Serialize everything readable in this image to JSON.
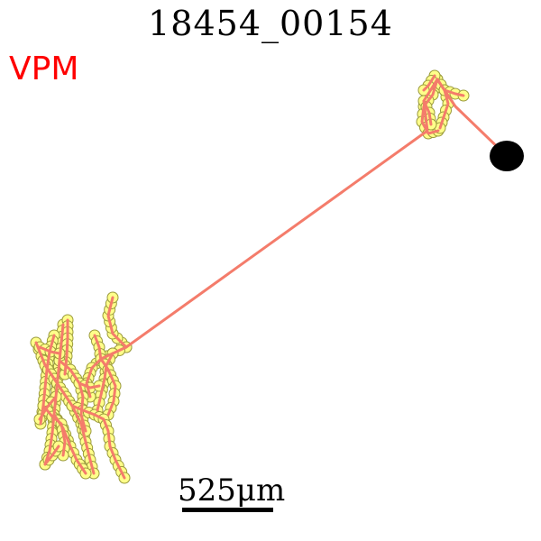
{
  "title": "18454_00154",
  "region": {
    "label": "VPM",
    "color": "#ff0000"
  },
  "scale_bar": {
    "label": "525μm",
    "length_um": 525
  },
  "colors": {
    "neurite": "#f47c6b",
    "node_fill": "#ffff8a",
    "node_stroke": "#9a9a3c",
    "soma": "#000000"
  },
  "icons": {
    "soma": "soma-circle-icon"
  }
}
